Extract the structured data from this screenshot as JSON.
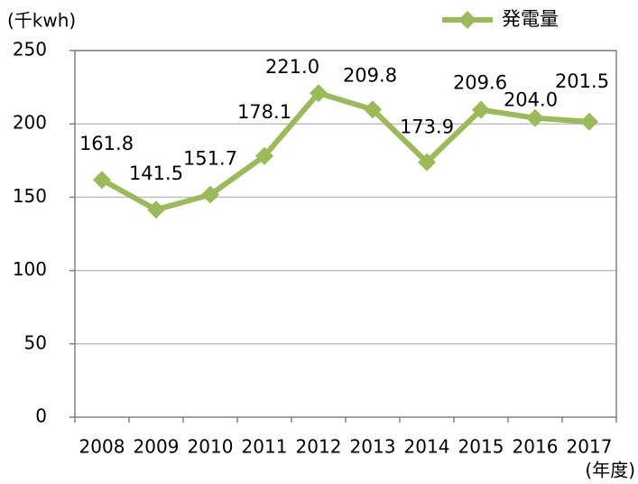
{
  "chart_data": {
    "type": "line",
    "y_label": "(千kwh)",
    "x_label": "(年度)",
    "categories": [
      "2008",
      "2009",
      "2010",
      "2011",
      "2012",
      "2013",
      "2014",
      "2015",
      "2016",
      "2017"
    ],
    "series": [
      {
        "name": "発電量",
        "color": "#9bbb59",
        "values": [
          161.8,
          141.5,
          151.7,
          178.1,
          221.0,
          209.8,
          173.9,
          209.6,
          204.0,
          201.5
        ],
        "value_labels": [
          "161.8",
          "141.5",
          "151.7",
          "178.1",
          "221.0",
          "209.8",
          "173.9",
          "209.6",
          "204.0",
          "201.5"
        ]
      }
    ],
    "ylim": [
      0,
      250
    ],
    "yticks": [
      0,
      50,
      100,
      150,
      200,
      250
    ],
    "grid": true,
    "legend": "top-right"
  }
}
